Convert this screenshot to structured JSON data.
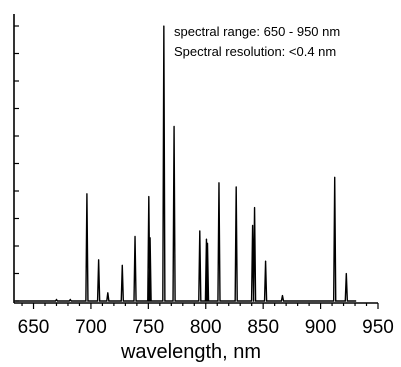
{
  "chart_data": {
    "type": "line",
    "title": "",
    "xlabel": "wavelength, nm",
    "ylabel": "",
    "xlim": [
      633,
      950
    ],
    "ylim": [
      0,
      100
    ],
    "x_ticks": [
      650,
      700,
      750,
      800,
      850,
      900,
      950
    ],
    "y_ticks_shown_labels": false,
    "grid": false,
    "annotations": [
      "spectral range: 650 - 950 nm",
      "Spectral resolution: <0.4 nm"
    ],
    "baseline": 0,
    "peaks": [
      {
        "x": 670,
        "y": 0.5
      },
      {
        "x": 682,
        "y": 0.5
      },
      {
        "x": 696.5,
        "y": 39
      },
      {
        "x": 706.7,
        "y": 15
      },
      {
        "x": 714.7,
        "y": 3
      },
      {
        "x": 727.3,
        "y": 13
      },
      {
        "x": 738.4,
        "y": 23.5
      },
      {
        "x": 750.4,
        "y": 38
      },
      {
        "x": 751.5,
        "y": 23
      },
      {
        "x": 763.5,
        "y": 100
      },
      {
        "x": 772.4,
        "y": 63.5
      },
      {
        "x": 794.8,
        "y": 25.5
      },
      {
        "x": 800.6,
        "y": 22.5
      },
      {
        "x": 801.5,
        "y": 21
      },
      {
        "x": 811.5,
        "y": 43
      },
      {
        "x": 826.5,
        "y": 41.5
      },
      {
        "x": 840.8,
        "y": 27.5
      },
      {
        "x": 842.5,
        "y": 34
      },
      {
        "x": 852.1,
        "y": 14.5
      },
      {
        "x": 866.8,
        "y": 2
      },
      {
        "x": 912.3,
        "y": 45
      },
      {
        "x": 922.4,
        "y": 10
      }
    ]
  }
}
